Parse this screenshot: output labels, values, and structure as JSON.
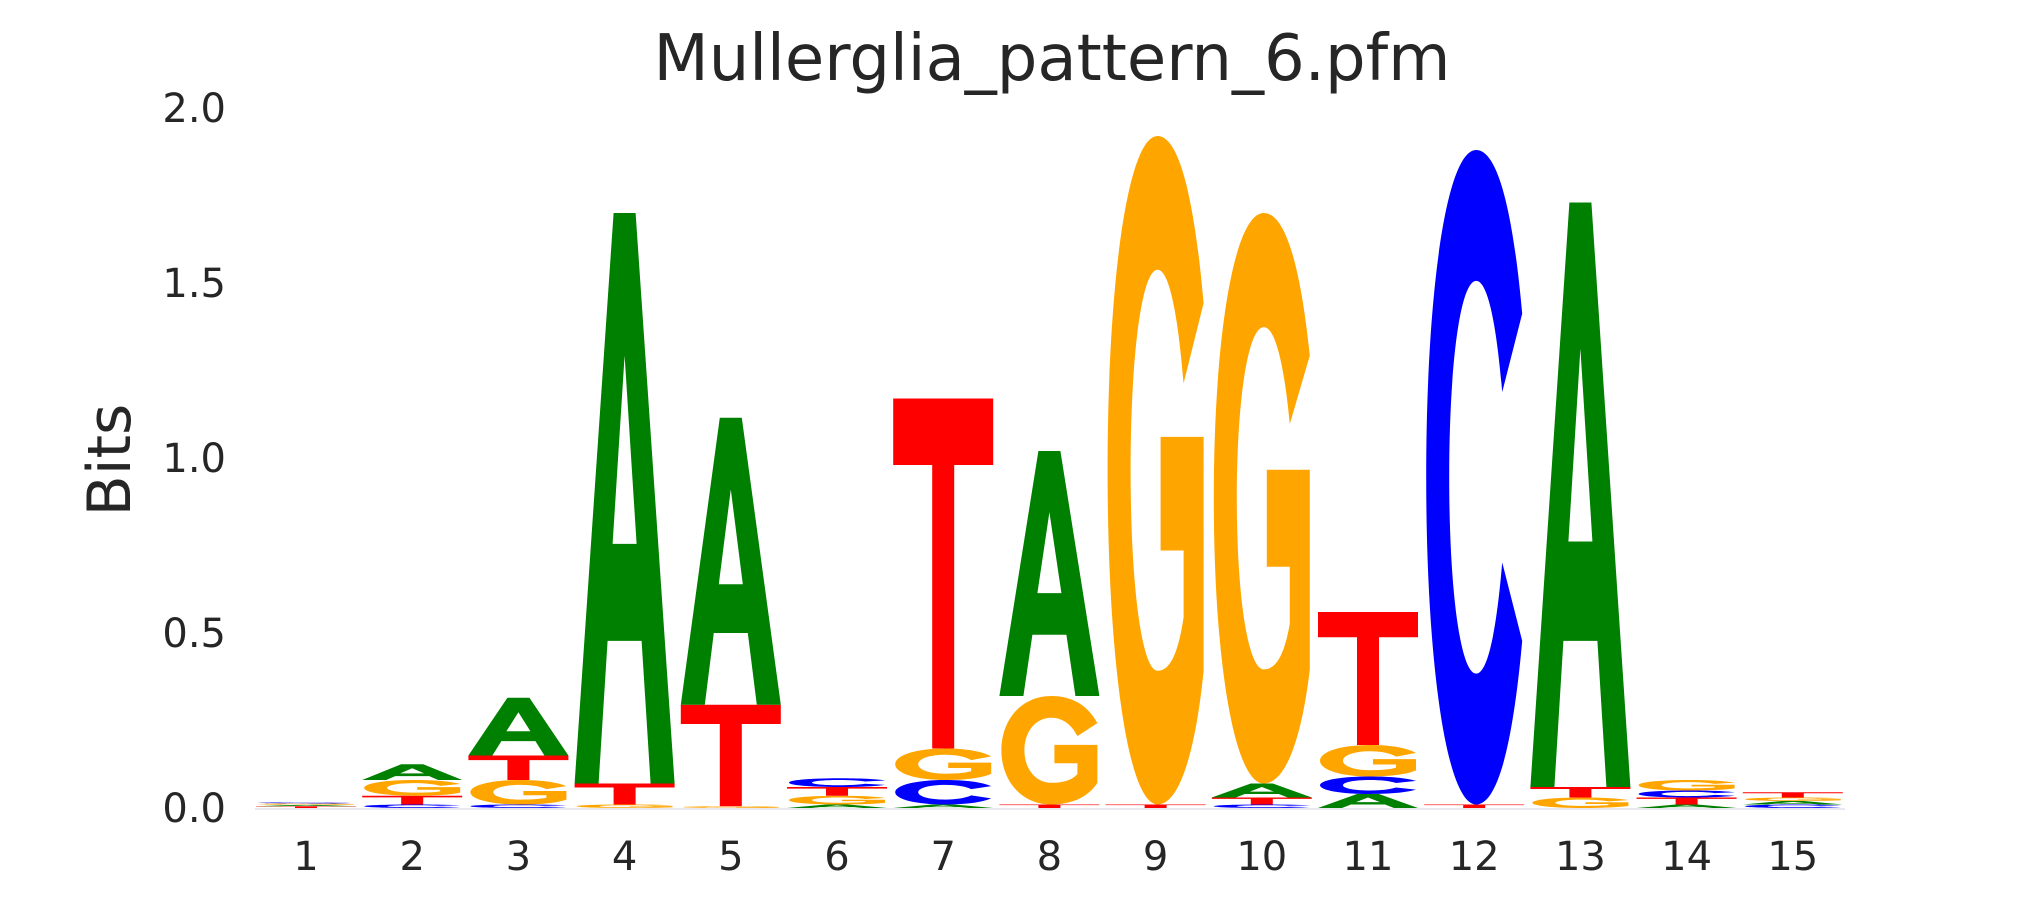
{
  "chart_data": {
    "type": "sequence_logo",
    "title": "Mullerglia_pattern_6.pfm",
    "xlabel": "",
    "ylabel": "Bits",
    "ylim": [
      0,
      2.0
    ],
    "yticks": [
      "0.0",
      "0.5",
      "1.0",
      "1.5",
      "2.0"
    ],
    "grid": false,
    "legend": "none",
    "colors": {
      "A": "#008000",
      "C": "#0000ff",
      "G": "#ffa500",
      "T": "#ff0000"
    },
    "positions": [
      {
        "label": "1",
        "stack": [
          [
            "T",
            0.005
          ],
          [
            "A",
            0.004
          ],
          [
            "G",
            0.004
          ],
          [
            "C",
            0.003
          ]
        ]
      },
      {
        "label": "2",
        "stack": [
          [
            "C",
            0.01
          ],
          [
            "T",
            0.025
          ],
          [
            "G",
            0.045
          ],
          [
            "A",
            0.045
          ]
        ]
      },
      {
        "label": "3",
        "stack": [
          [
            "C",
            0.01
          ],
          [
            "G",
            0.07
          ],
          [
            "T",
            0.07
          ],
          [
            "A",
            0.165
          ]
        ]
      },
      {
        "label": "4",
        "stack": [
          [
            "G",
            0.01
          ],
          [
            "T",
            0.06
          ],
          [
            "A",
            1.63
          ]
        ]
      },
      {
        "label": "5",
        "stack": [
          [
            "G",
            0.005
          ],
          [
            "T",
            0.29
          ],
          [
            "A",
            0.82
          ]
        ]
      },
      {
        "label": "6",
        "stack": [
          [
            "A",
            0.01
          ],
          [
            "G",
            0.025
          ],
          [
            "T",
            0.025
          ],
          [
            "C",
            0.025
          ]
        ]
      },
      {
        "label": "7",
        "stack": [
          [
            "A",
            0.01
          ],
          [
            "C",
            0.07
          ],
          [
            "G",
            0.09
          ],
          [
            "T",
            1.0
          ]
        ]
      },
      {
        "label": "8",
        "stack": [
          [
            "T",
            0.01
          ],
          [
            "G",
            0.31
          ],
          [
            "A",
            0.7
          ]
        ]
      },
      {
        "label": "9",
        "stack": [
          [
            "T",
            0.01
          ],
          [
            "G",
            1.91
          ]
        ]
      },
      {
        "label": "10",
        "stack": [
          [
            "C",
            0.01
          ],
          [
            "T",
            0.02
          ],
          [
            "A",
            0.04
          ],
          [
            "G",
            1.63
          ]
        ]
      },
      {
        "label": "11",
        "stack": [
          [
            "A",
            0.04
          ],
          [
            "C",
            0.05
          ],
          [
            "G",
            0.09
          ],
          [
            "T",
            0.38
          ]
        ]
      },
      {
        "label": "12",
        "stack": [
          [
            "T",
            0.01
          ],
          [
            "C",
            1.87
          ]
        ]
      },
      {
        "label": "13",
        "stack": [
          [
            "G",
            0.03
          ],
          [
            "T",
            0.03
          ],
          [
            "A",
            1.67
          ]
        ]
      },
      {
        "label": "14",
        "stack": [
          [
            "A",
            0.01
          ],
          [
            "T",
            0.02
          ],
          [
            "C",
            0.02
          ],
          [
            "G",
            0.03
          ]
        ]
      },
      {
        "label": "15",
        "stack": [
          [
            "C",
            0.01
          ],
          [
            "A",
            0.01
          ],
          [
            "G",
            0.01
          ],
          [
            "T",
            0.015
          ]
        ]
      }
    ]
  }
}
